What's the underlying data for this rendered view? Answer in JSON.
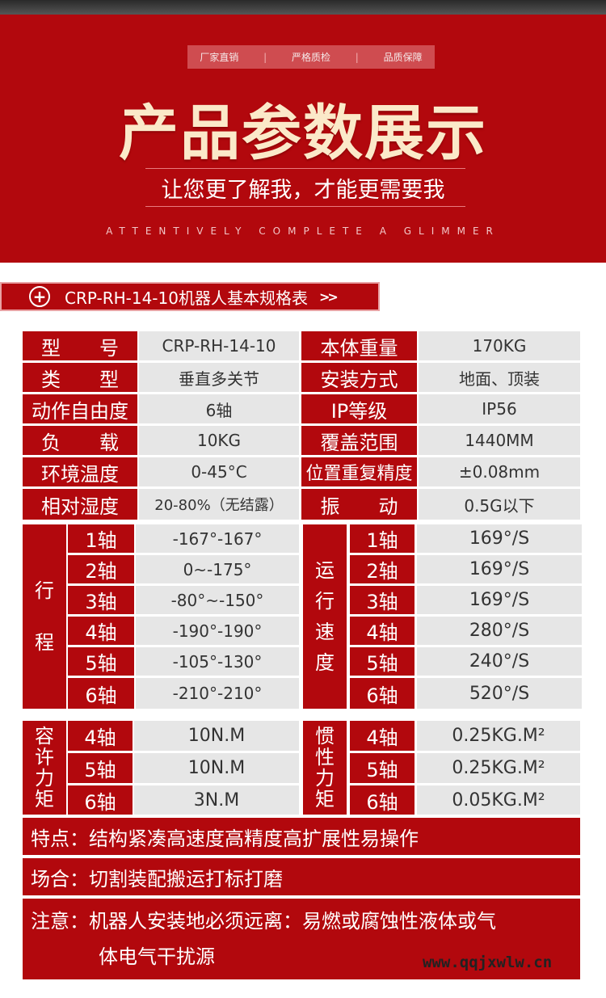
{
  "banner": {
    "tags": [
      "厂家直销",
      "严格质检",
      "品质保障"
    ],
    "separator": "|",
    "title": "产品参数展示",
    "subtitle": "让您更了解我，才能更需要我",
    "tagline": "ATTENTIVELY COMPLETE A GLIMMER"
  },
  "section": {
    "icon": "plus-circle-icon",
    "title": "CRP-RH-14-10机器人基本规格表",
    "arrows": "»"
  },
  "specs": [
    {
      "label": "型　　号",
      "value": "CRP-RH-14-10",
      "label2": "本体重量",
      "value2": "170KG"
    },
    {
      "label": "类　　型",
      "value": "垂直多关节",
      "label2": "安装方式",
      "value2": "地面、顶装"
    },
    {
      "label": "动作自由度",
      "value": "6轴",
      "label2": "IP等级",
      "value2": "IP56"
    },
    {
      "label": "负　　载",
      "value": "10KG",
      "label2": "覆盖范围",
      "value2": "1440MM"
    },
    {
      "label": "环境温度",
      "value": "0-45°C",
      "label2": "位置重复精度",
      "value2": "±0.08mm"
    },
    {
      "label": "相对湿度",
      "value": "20-80%（无结露）",
      "label2": "振　　动",
      "value2": "0.5G以下"
    }
  ],
  "travel": {
    "label": [
      "行",
      "程"
    ],
    "rows": [
      {
        "axis": "1轴",
        "value": "-167°-167°"
      },
      {
        "axis": "2轴",
        "value": "0~-175°"
      },
      {
        "axis": "3轴",
        "value": "-80°~-150°"
      },
      {
        "axis": "4轴",
        "value": "-190°-190°"
      },
      {
        "axis": "5轴",
        "value": "-105°-130°"
      },
      {
        "axis": "6轴",
        "value": "-210°-210°"
      }
    ]
  },
  "speed": {
    "label": [
      "运",
      "行",
      "速",
      "度"
    ],
    "rows": [
      {
        "axis": "1轴",
        "value": "169°/S"
      },
      {
        "axis": "2轴",
        "value": "169°/S"
      },
      {
        "axis": "3轴",
        "value": "169°/S"
      },
      {
        "axis": "4轴",
        "value": "280°/S"
      },
      {
        "axis": "5轴",
        "value": "240°/S"
      },
      {
        "axis": "6轴",
        "value": "520°/S"
      }
    ]
  },
  "torque": {
    "label": [
      "容",
      "许",
      "力",
      "矩"
    ],
    "rows": [
      {
        "axis": "4轴",
        "value": "10N.M"
      },
      {
        "axis": "5轴",
        "value": "10N.M"
      },
      {
        "axis": "6轴",
        "value": "3N.M"
      }
    ]
  },
  "inertia": {
    "label": [
      "惯",
      "性",
      "力",
      "矩"
    ],
    "rows": [
      {
        "axis": "4轴",
        "value": "0.25KG.M²"
      },
      {
        "axis": "5轴",
        "value": "0.25KG.M²"
      },
      {
        "axis": "6轴",
        "value": "0.05KG.M²"
      }
    ]
  },
  "notes": {
    "features": "特点：结构紧凑高速度高精度高扩展性易操作",
    "applications": "场合：切割装配搬运打标打磨",
    "caution_line1": "注意：机器人安装地必须远离：易燃或腐蚀性液体或气",
    "caution_line2": "体电气干扰源"
  },
  "watermark": "www.qqjxwlw.cn",
  "colors": {
    "brand_red": "#b2080d",
    "cell_grey": "#e6e6e6",
    "title_cream": "#fbe9c9"
  }
}
